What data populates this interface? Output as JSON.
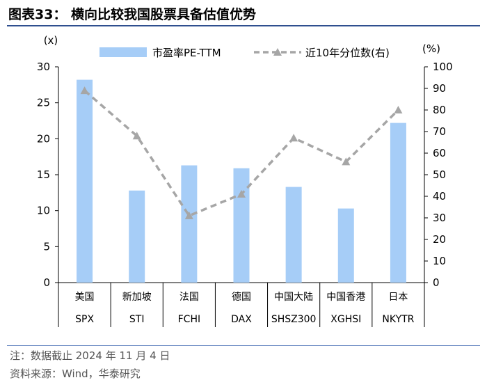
{
  "title": "图表33：  横向比较我国股票具备估值优势",
  "notes": {
    "line1": "注：数据截止 2024 年 11 月 4 日",
    "line2": "资料来源：Wind，华泰研究"
  },
  "chart_data": {
    "type": "bar",
    "categories": [
      "美国",
      "新加坡",
      "法国",
      "德国",
      "中国大陆",
      "中国香港",
      "日本"
    ],
    "categories_secondary": [
      "SPX",
      "STI",
      "FCHI",
      "DAX",
      "SHSZ300",
      "XGHSI",
      "NKYTR"
    ],
    "series": [
      {
        "name": "市盈率PE-TTM",
        "type": "bar",
        "axis": "left",
        "values": [
          28.2,
          12.8,
          16.3,
          15.9,
          13.3,
          10.3,
          22.2
        ],
        "color": "#a6cdf7"
      },
      {
        "name": "近10年分位数(右)",
        "type": "line",
        "axis": "right",
        "values": [
          89,
          68,
          31,
          41,
          67,
          56,
          80
        ],
        "color": "#a6a6a6"
      }
    ],
    "left_axis": {
      "unit_label": "(x)",
      "ylim": [
        0,
        30
      ],
      "ticks": [
        0,
        5,
        10,
        15,
        20,
        25,
        30
      ]
    },
    "right_axis": {
      "unit_label": "(%)",
      "ylim": [
        0,
        100
      ],
      "ticks": [
        0,
        10,
        20,
        30,
        40,
        50,
        60,
        70,
        80,
        90,
        100
      ]
    },
    "legend_position": "top",
    "grid": false
  }
}
